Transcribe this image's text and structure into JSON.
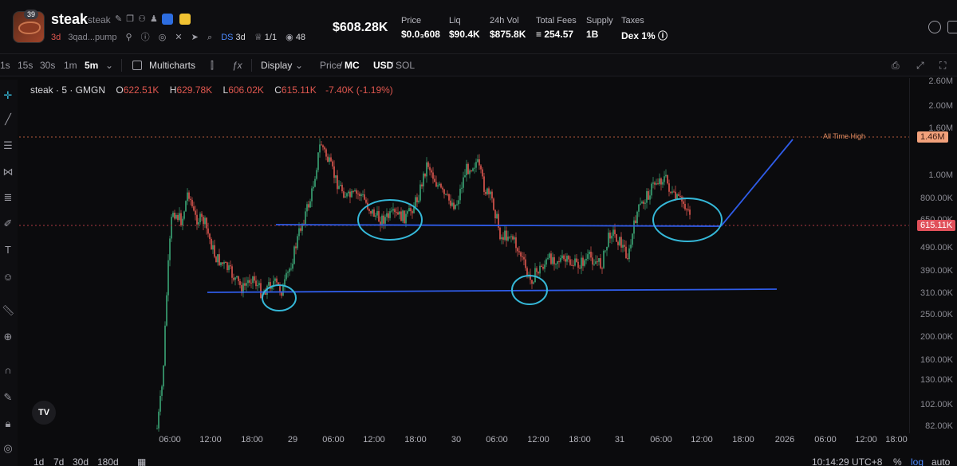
{
  "header": {
    "holders_badge": "39",
    "token_name": "steak",
    "token_symbol": "steak",
    "age": "3d",
    "address": "3qad...pump",
    "ds_label": "DS",
    "ds_age": "3d",
    "ratio": "1/1",
    "watchers": "48",
    "market_cap": "$608.28K",
    "stats": [
      {
        "label": "Price",
        "value": "$0.0₃608"
      },
      {
        "label": "Liq",
        "value": "$90.4K"
      },
      {
        "label": "24h Vol",
        "value": "$875.8K"
      },
      {
        "label": "Total Fees",
        "value": "≡ 254.57"
      },
      {
        "label": "Supply",
        "value": "1B"
      },
      {
        "label": "Taxes",
        "value": "Dex 1% ⓘ"
      }
    ]
  },
  "toolbar": {
    "intervals": [
      "1s",
      "15s",
      "30s",
      "1m",
      "5m"
    ],
    "active_interval": "5m",
    "multicharts": "Multicharts",
    "display": "Display",
    "price": "Price",
    "mc": "MC",
    "usd": "USD",
    "sol": "SOL"
  },
  "legend": {
    "symbol": "steak · 5 · GMGN",
    "o": "622.51K",
    "h": "629.78K",
    "l": "606.02K",
    "c": "615.11K",
    "change": "-7.40K (-1.19%)"
  },
  "yaxis": [
    "2.60M",
    "2.00M",
    "1.60M",
    "1.00M",
    "800.00K",
    "650.00K",
    "490.00K",
    "390.00K",
    "310.00K",
    "250.00K",
    "200.00K",
    "160.00K",
    "130.00K",
    "102.00K",
    "82.00K"
  ],
  "ath_label": "All Time High",
  "ath_value": "1.46M",
  "current_price": "615.11K",
  "xaxis": [
    "06:00",
    "12:00",
    "18:00",
    "29",
    "06:00",
    "12:00",
    "18:00",
    "30",
    "06:00",
    "12:00",
    "18:00",
    "31",
    "06:00",
    "12:00",
    "18:00",
    "2026",
    "06:00",
    "12:00",
    "18:00"
  ],
  "tv_logo": "TV",
  "bottom": {
    "ranges": [
      "1d",
      "7d",
      "30d",
      "180d"
    ],
    "time": "10:14:29 UTC+8",
    "pct": "%",
    "log": "log",
    "auto": "auto"
  },
  "colors": {
    "up": "#3ba676",
    "down": "#e0574f",
    "drawing": "#2f5ce8",
    "circles": "#35b8d8"
  }
}
